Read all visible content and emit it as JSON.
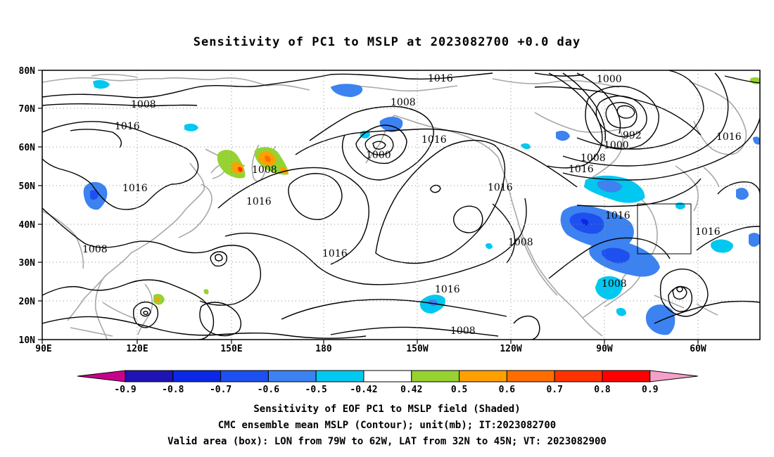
{
  "title": "Sensitivity of PC1 to MSLP at 2023082700 +0.0 day",
  "lat_labels": [
    "80N",
    "70N",
    "60N",
    "50N",
    "40N",
    "30N",
    "20N",
    "10N"
  ],
  "lon_labels": [
    "90E",
    "120E",
    "150E",
    "180",
    "150W",
    "120W",
    "90W",
    "60W"
  ],
  "contour_labels": {
    "c1016_a": "1016",
    "c1008_a": "1008",
    "c1016_b": "1016",
    "c1016_c": "1016",
    "c1008_b": "1008",
    "c1016_d": "1016",
    "c1008_c": "1008",
    "c1000_a": "1000",
    "c1016_e": "1016",
    "c1016_f": "1016",
    "c1008_d": "1008",
    "c1016_g": "1016",
    "c1016_h": "1016",
    "c1008_e": "1008",
    "c1000_b": "1000",
    "c992": "992",
    "c1000_c": "1000",
    "c1008_f": "1008",
    "c1016_i": "1016",
    "c1016_j": "1016",
    "c1016_k": "1016",
    "c1016_l": "1016",
    "c1008_g": "1008",
    "c1008_h": "1008",
    "c1008_i": "1008"
  },
  "colorbar": {
    "labels": [
      "-0.9",
      "-0.8",
      "-0.7",
      "-0.6",
      "-0.5",
      "-0.42",
      "0.42",
      "0.5",
      "0.6",
      "0.7",
      "0.8",
      "0.9"
    ],
    "colors": [
      "#c8008c",
      "#1e14b4",
      "#0a28e6",
      "#1e50f0",
      "#3c82f0",
      "#00c8f0",
      "#ffffff",
      "#96d232",
      "#ffa000",
      "#ff6e00",
      "#ff3200",
      "#ff0000",
      "#f5a0c8"
    ]
  },
  "captions": {
    "line1": "Sensitivity of EOF PC1 to MSLP field (Shaded)",
    "line2": "CMC ensemble mean MSLP (Contour); unit(mb); IT:2023082700",
    "line3": "Valid area (box): LON from 79W to 62W, LAT from 32N to 45N; VT: 2023082900"
  }
}
